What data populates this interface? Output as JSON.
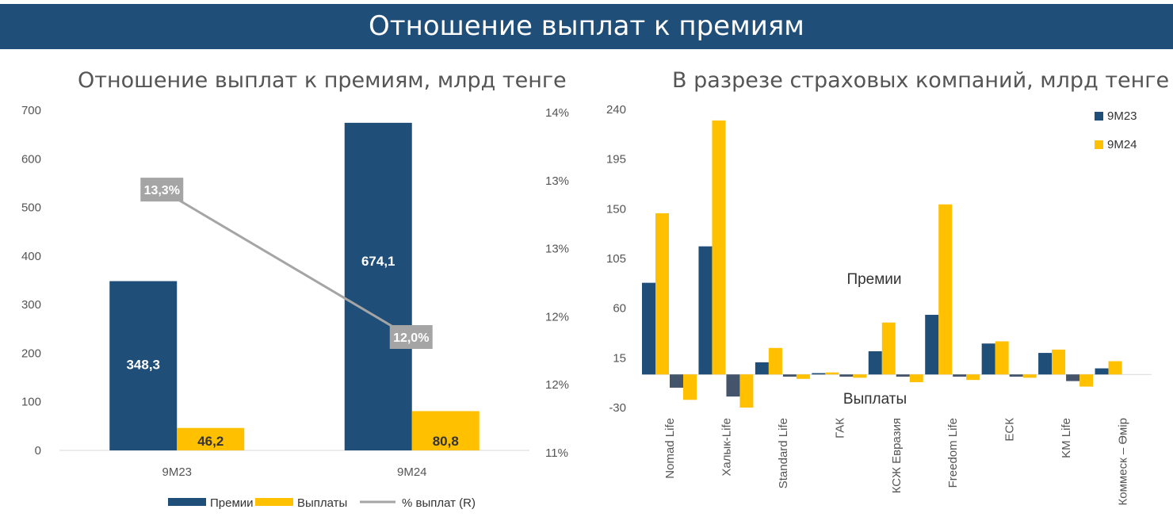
{
  "banner": {
    "title": "Отношение выплат к премиям"
  },
  "chart_data": [
    {
      "type": "bar",
      "title": "Отношение выплат к премиям, млрд тенге",
      "categories": [
        "9M23",
        "9M24"
      ],
      "series": [
        {
          "name": "Премии",
          "values": [
            348.3,
            674.1
          ],
          "labels": [
            "348,3",
            "674,1"
          ],
          "color": "#1f4e79"
        },
        {
          "name": "Выплаты",
          "values": [
            46.2,
            80.8
          ],
          "labels": [
            "46,2",
            "80,8"
          ],
          "color": "#ffc000"
        },
        {
          "name": "%  выплат (R)",
          "type": "line",
          "axis": "right",
          "values": [
            13.3,
            12.0
          ],
          "labels": [
            "13,3%",
            "12,0%"
          ],
          "color": "#a5a5a5"
        }
      ],
      "ylim": [
        0,
        700
      ],
      "yticks": [
        "0",
        "100",
        "200",
        "300",
        "400",
        "500",
        "600",
        "700"
      ],
      "y2lim": [
        11.0,
        14.0
      ],
      "y2ticks": [
        "11%",
        "12%",
        "12%",
        "13%",
        "13%",
        "14%"
      ],
      "legend": "bottom"
    },
    {
      "type": "bar",
      "title": "В разрезе страховых компаний, млрд тенге",
      "categories": [
        "Nomad Life",
        "Халык-Life",
        "Standard Life",
        "ГАК",
        "КСЖ Евразия",
        "Freedom Life",
        "ЕСК",
        "KM Life",
        "Коммеск – Өмір"
      ],
      "series": [
        {
          "name": "9M23",
          "color": "#1f4e79",
          "premiums": [
            83,
            116,
            11,
            1.2,
            21,
            54,
            28,
            19.5,
            5.5
          ],
          "payouts": [
            -12,
            -20,
            -2,
            -2,
            -2,
            -2,
            -2,
            -6,
            0
          ]
        },
        {
          "name": "9M24",
          "color": "#ffc000",
          "premiums": [
            146,
            230,
            24,
            1.8,
            47,
            154,
            30,
            22.5,
            12
          ],
          "payouts": [
            -23,
            -30,
            -4,
            -3,
            -7,
            -5,
            -3,
            -11,
            0
          ]
        }
      ],
      "ylim": [
        -30,
        240
      ],
      "yticks": [
        "-30",
        "15",
        "60",
        "105",
        "150",
        "195",
        "240"
      ],
      "annotations": [
        "Премии",
        "Выплаты"
      ],
      "legend": "top-right"
    }
  ]
}
